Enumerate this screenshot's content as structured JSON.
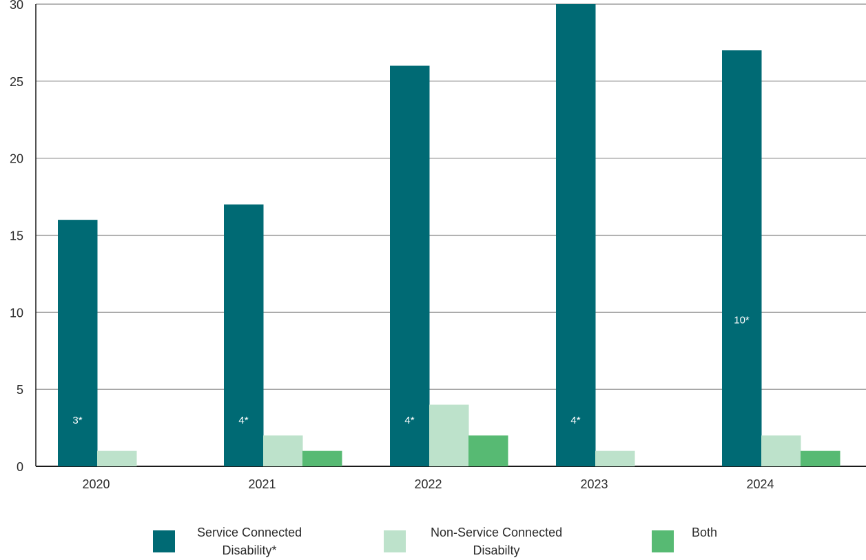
{
  "chart_data": {
    "type": "bar",
    "categories": [
      "2020",
      "2021",
      "2022",
      "2023",
      "2024"
    ],
    "series": [
      {
        "name": "Service Connected Disability*",
        "values": [
          16,
          17,
          26,
          30,
          27
        ],
        "color": "#006a74"
      },
      {
        "name": "Non-Service Connected Disabilty",
        "values": [
          1,
          2,
          4,
          1,
          2
        ],
        "color": "#bde2cb"
      },
      {
        "name": "Both",
        "values": [
          0,
          1,
          2,
          0,
          1
        ],
        "color": "#57ba73"
      }
    ],
    "bar_annotations": [
      "3*",
      "4*",
      "4*",
      "4*",
      "10*"
    ],
    "ylim": [
      0,
      30
    ],
    "yticks": [
      0,
      5,
      10,
      15,
      20,
      25,
      30
    ],
    "grid": true,
    "legend_position": "bottom",
    "title": "",
    "xlabel": "",
    "ylabel": ""
  },
  "legend": {
    "items": [
      {
        "line1": "Service Connected",
        "line2": "Disability*"
      },
      {
        "line1": "Non-Service Connected",
        "line2": "Disabilty"
      },
      {
        "line1": "Both",
        "line2": ""
      }
    ]
  }
}
